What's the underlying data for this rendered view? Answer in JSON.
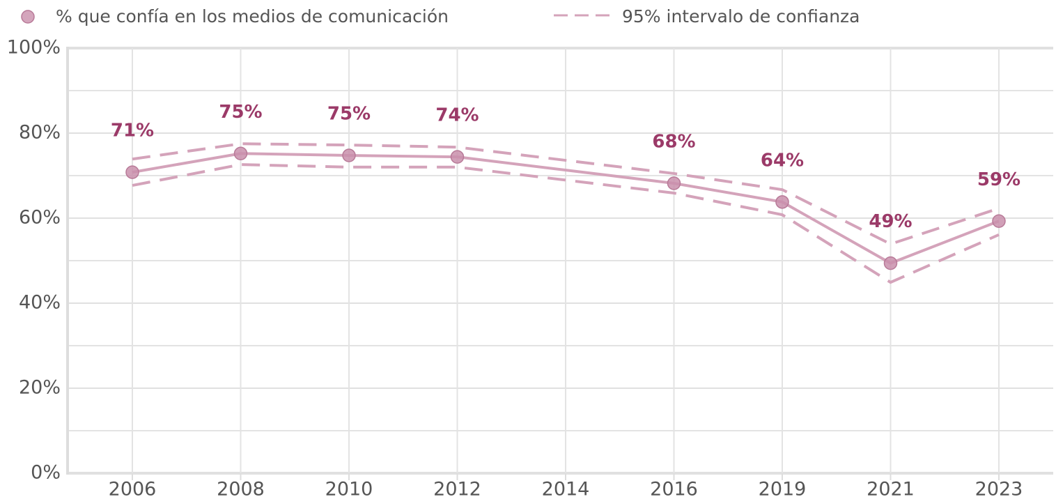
{
  "chart_data": {
    "type": "line",
    "categories": [
      "2006",
      "2008",
      "2010",
      "2012",
      "2014",
      "2016",
      "2019",
      "2021",
      "2023"
    ],
    "series": [
      {
        "name": "% que confía en los medios de comunicación",
        "color": "#c98fab",
        "values": [
          70.8,
          75.2,
          74.75,
          74.4,
          null,
          68.2,
          63.8,
          49.4,
          59.3
        ],
        "value_labels": [
          "71%",
          "75%",
          "75%",
          "74%",
          null,
          "68%",
          "64%",
          "49%",
          "59%"
        ]
      }
    ],
    "interval": {
      "name": "95% intervalo de confianza",
      "color": "#d4a3ba",
      "upper": [
        73.9,
        77.5,
        77.2,
        76.7,
        null,
        70.5,
        66.7,
        53.9,
        62.3
      ],
      "lower": [
        67.7,
        72.6,
        72.0,
        72.0,
        null,
        65.9,
        60.8,
        44.9,
        56.1
      ]
    },
    "ylim": [
      0,
      100
    ],
    "yticks": [
      {
        "value": 0,
        "label": "0%"
      },
      {
        "value": 20,
        "label": "20%"
      },
      {
        "value": 40,
        "label": "40%"
      },
      {
        "value": 60,
        "label": "60%"
      },
      {
        "value": 80,
        "label": "80%"
      },
      {
        "value": 100,
        "label": "100%"
      }
    ],
    "minor_yticks": [
      10,
      30,
      50,
      70,
      90
    ],
    "grid": true
  }
}
